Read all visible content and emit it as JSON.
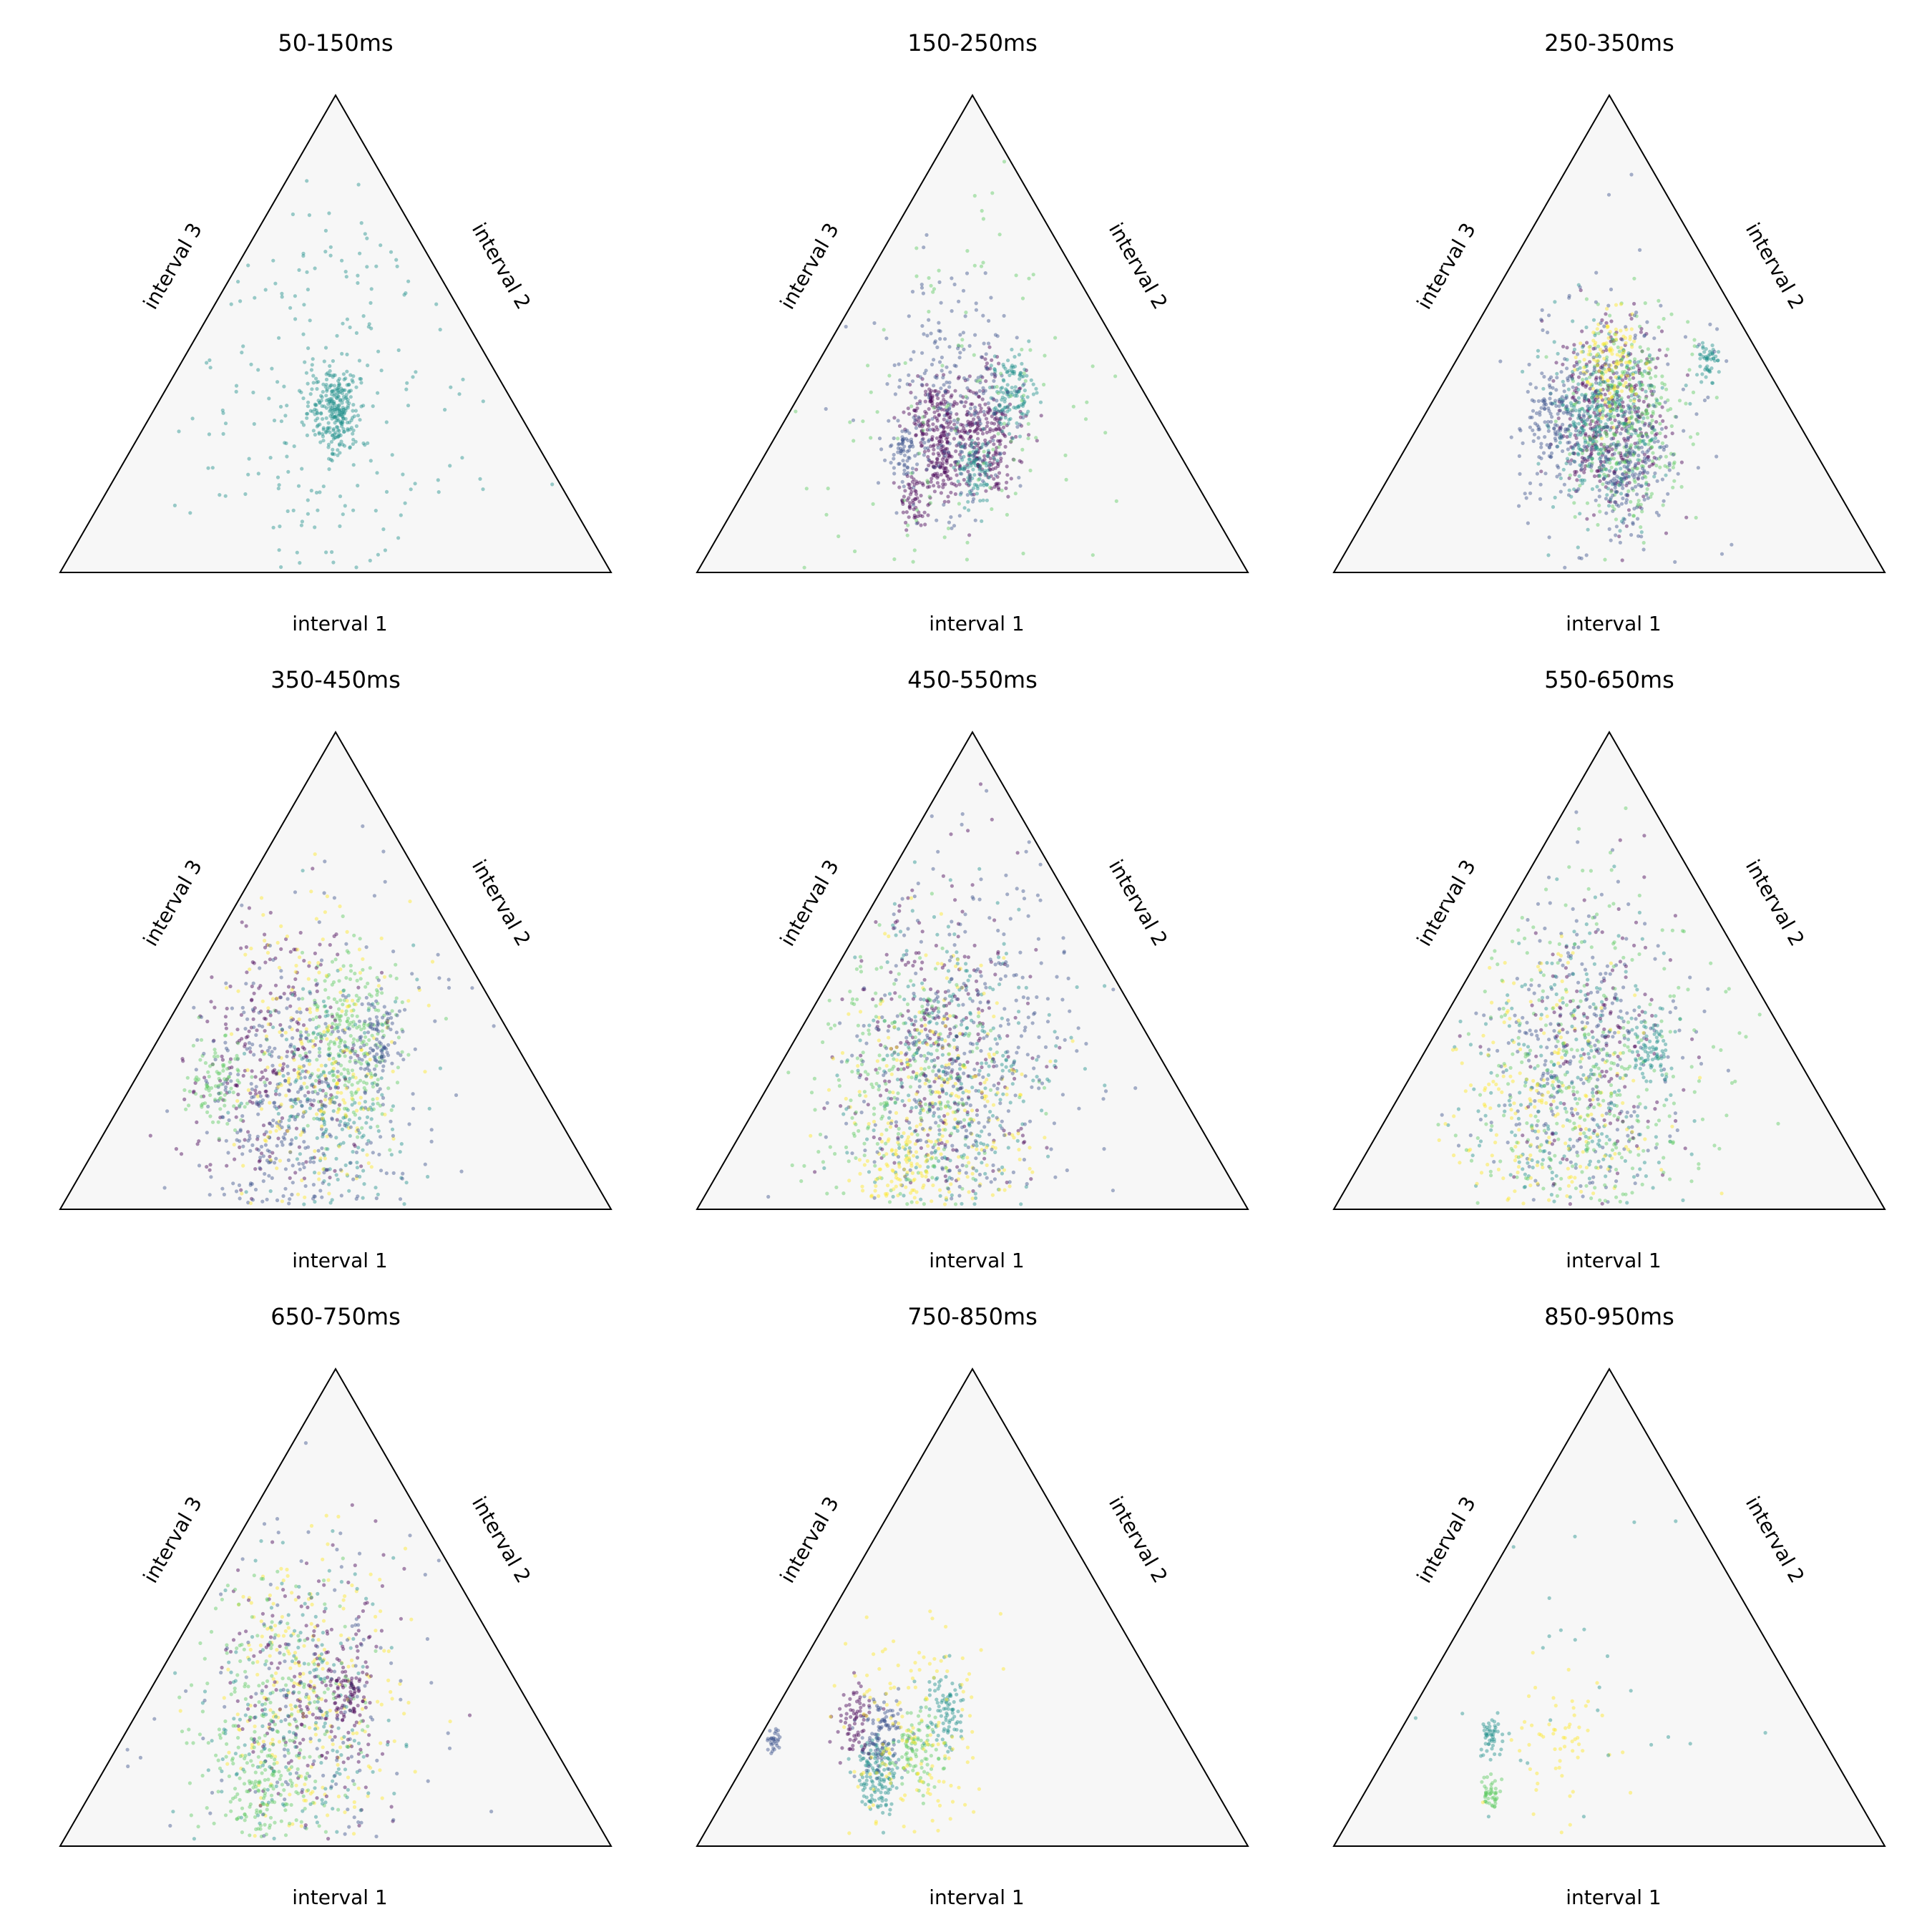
{
  "colors": {
    "triangle_fill": "#f7f7f7",
    "triangle_edge": "#000000",
    "colormap": [
      "#440154",
      "#3b528b",
      "#21918c",
      "#5ec962",
      "#fde725"
    ]
  },
  "chart_data": [
    {
      "type": "scatter",
      "subtype": "ternary",
      "title": "50-150ms",
      "axis_labels": {
        "bottom": "interval 1",
        "right": "interval 2",
        "left": "interval 3"
      },
      "clusters": [
        {
          "center": [
            0.33,
            0.33,
            0.34
          ],
          "spread": 0.03,
          "count": 260,
          "color_index": 2
        },
        {
          "center": [
            0.36,
            0.31,
            0.33
          ],
          "spread": 0.18,
          "count": 260,
          "color_index": 2
        }
      ]
    },
    {
      "type": "scatter",
      "subtype": "ternary",
      "title": "150-250ms",
      "axis_labels": {
        "bottom": "interval 1",
        "right": "interval 2",
        "left": "interval 3"
      },
      "clusters": [
        {
          "center": [
            0.33,
            0.38,
            0.29
          ],
          "spread": 0.045,
          "count": 260,
          "color_index": 0
        },
        {
          "center": [
            0.41,
            0.27,
            0.32
          ],
          "spread": 0.035,
          "count": 160,
          "color_index": 0
        },
        {
          "center": [
            0.24,
            0.38,
            0.38
          ],
          "spread": 0.03,
          "count": 120,
          "color_index": 2
        },
        {
          "center": [
            0.44,
            0.33,
            0.23
          ],
          "spread": 0.025,
          "count": 100,
          "color_index": 0
        },
        {
          "center": [
            0.39,
            0.4,
            0.21
          ],
          "spread": 0.025,
          "count": 90,
          "color_index": 2
        },
        {
          "center": [
            0.5,
            0.25,
            0.25
          ],
          "spread": 0.02,
          "count": 60,
          "color_index": 1
        },
        {
          "center": [
            0.53,
            0.32,
            0.15
          ],
          "spread": 0.02,
          "count": 60,
          "color_index": 0
        },
        {
          "center": [
            0.37,
            0.28,
            0.35
          ],
          "spread": 0.09,
          "count": 240,
          "color_index": 1
        },
        {
          "center": [
            0.34,
            0.33,
            0.33
          ],
          "spread": 0.2,
          "count": 160,
          "color_index": 3
        }
      ]
    },
    {
      "type": "scatter",
      "subtype": "ternary",
      "title": "250-350ms",
      "axis_labels": {
        "bottom": "interval 1",
        "right": "interval 2",
        "left": "interval 3"
      },
      "clusters": [
        {
          "center": [
            0.1,
            0.46,
            0.44
          ],
          "spread": 0.015,
          "count": 50,
          "color_index": 2
        },
        {
          "center": [
            0.34,
            0.34,
            0.32
          ],
          "spread": 0.07,
          "count": 360,
          "color_index": 0
        },
        {
          "center": [
            0.3,
            0.37,
            0.33
          ],
          "spread": 0.07,
          "count": 360,
          "color_index": 3
        },
        {
          "center": [
            0.36,
            0.32,
            0.32
          ],
          "spread": 0.07,
          "count": 300,
          "color_index": 2
        },
        {
          "center": [
            0.28,
            0.28,
            0.44
          ],
          "spread": 0.04,
          "count": 120,
          "color_index": 4
        },
        {
          "center": [
            0.36,
            0.44,
            0.2
          ],
          "spread": 0.04,
          "count": 120,
          "color_index": 1
        },
        {
          "center": [
            0.44,
            0.24,
            0.32
          ],
          "spread": 0.04,
          "count": 120,
          "color_index": 1
        },
        {
          "center": [
            0.34,
            0.33,
            0.33
          ],
          "spread": 0.13,
          "count": 200,
          "color_index": 1
        }
      ]
    },
    {
      "type": "scatter",
      "subtype": "ternary",
      "title": "350-450ms",
      "axis_labels": {
        "bottom": "interval 1",
        "right": "interval 2",
        "left": "interval 3"
      },
      "clusters": [
        {
          "center": [
            0.3,
            0.35,
            0.35
          ],
          "spread": 0.07,
          "count": 260,
          "color_index": 3
        },
        {
          "center": [
            0.45,
            0.22,
            0.33
          ],
          "spread": 0.12,
          "count": 260,
          "color_index": 0
        },
        {
          "center": [
            0.4,
            0.4,
            0.2
          ],
          "spread": 0.1,
          "count": 220,
          "color_index": 2
        },
        {
          "center": [
            0.5,
            0.3,
            0.2
          ],
          "spread": 0.1,
          "count": 220,
          "color_index": 1
        },
        {
          "center": [
            0.38,
            0.3,
            0.32
          ],
          "spread": 0.12,
          "count": 220,
          "color_index": 4
        },
        {
          "center": [
            0.25,
            0.4,
            0.35
          ],
          "spread": 0.03,
          "count": 90,
          "color_index": 1
        },
        {
          "center": [
            0.58,
            0.15,
            0.27
          ],
          "spread": 0.04,
          "count": 90,
          "color_index": 3
        },
        {
          "center": [
            0.4,
            0.38,
            0.22
          ],
          "spread": 0.18,
          "count": 200,
          "color_index": 1
        }
      ]
    },
    {
      "type": "scatter",
      "subtype": "ternary",
      "title": "450-550ms",
      "axis_labels": {
        "bottom": "interval 1",
        "right": "interval 2",
        "left": "interval 3"
      },
      "clusters": [
        {
          "center": [
            0.4,
            0.33,
            0.27
          ],
          "spread": 0.12,
          "count": 320,
          "color_index": 2
        },
        {
          "center": [
            0.38,
            0.28,
            0.34
          ],
          "spread": 0.12,
          "count": 260,
          "color_index": 0
        },
        {
          "center": [
            0.45,
            0.35,
            0.2
          ],
          "spread": 0.12,
          "count": 260,
          "color_index": 4
        },
        {
          "center": [
            0.5,
            0.25,
            0.25
          ],
          "spread": 0.12,
          "count": 260,
          "color_index": 3
        },
        {
          "center": [
            0.4,
            0.32,
            0.28
          ],
          "spread": 0.12,
          "count": 220,
          "color_index": 1
        },
        {
          "center": [
            0.6,
            0.34,
            0.06
          ],
          "spread": 0.04,
          "count": 90,
          "color_index": 4
        },
        {
          "center": [
            0.3,
            0.35,
            0.35
          ],
          "spread": 0.2,
          "count": 180,
          "color_index": 1
        }
      ]
    },
    {
      "type": "scatter",
      "subtype": "ternary",
      "title": "550-650ms",
      "axis_labels": {
        "bottom": "interval 1",
        "right": "interval 2",
        "left": "interval 3"
      },
      "clusters": [
        {
          "center": [
            0.4,
            0.3,
            0.3
          ],
          "spread": 0.13,
          "count": 300,
          "color_index": 1
        },
        {
          "center": [
            0.45,
            0.3,
            0.25
          ],
          "spread": 0.13,
          "count": 260,
          "color_index": 2
        },
        {
          "center": [
            0.5,
            0.28,
            0.22
          ],
          "spread": 0.13,
          "count": 240,
          "color_index": 4
        },
        {
          "center": [
            0.42,
            0.34,
            0.24
          ],
          "spread": 0.13,
          "count": 200,
          "color_index": 3
        },
        {
          "center": [
            0.35,
            0.3,
            0.35
          ],
          "spread": 0.12,
          "count": 140,
          "color_index": 0
        },
        {
          "center": [
            0.25,
            0.4,
            0.35
          ],
          "spread": 0.03,
          "count": 80,
          "color_index": 2
        },
        {
          "center": [
            0.4,
            0.36,
            0.24
          ],
          "spread": 0.2,
          "count": 180,
          "color_index": 3
        }
      ]
    },
    {
      "type": "scatter",
      "subtype": "ternary",
      "title": "650-750ms",
      "axis_labels": {
        "bottom": "interval 1",
        "right": "interval 2",
        "left": "interval 3"
      },
      "clusters": [
        {
          "center": [
            0.4,
            0.3,
            0.3
          ],
          "spread": 0.12,
          "count": 240,
          "color_index": 4
        },
        {
          "center": [
            0.38,
            0.3,
            0.32
          ],
          "spread": 0.1,
          "count": 200,
          "color_index": 0
        },
        {
          "center": [
            0.48,
            0.25,
            0.27
          ],
          "spread": 0.12,
          "count": 220,
          "color_index": 3
        },
        {
          "center": [
            0.43,
            0.3,
            0.27
          ],
          "spread": 0.12,
          "count": 200,
          "color_index": 2
        },
        {
          "center": [
            0.58,
            0.3,
            0.12
          ],
          "spread": 0.04,
          "count": 100,
          "color_index": 3
        },
        {
          "center": [
            0.32,
            0.36,
            0.32
          ],
          "spread": 0.03,
          "count": 80,
          "color_index": 0
        },
        {
          "center": [
            0.4,
            0.34,
            0.26
          ],
          "spread": 0.2,
          "count": 160,
          "color_index": 1
        }
      ]
    },
    {
      "type": "scatter",
      "subtype": "ternary",
      "title": "750-850ms",
      "axis_labels": {
        "bottom": "interval 1",
        "right": "interval 2",
        "left": "interval 3"
      },
      "clusters": [
        {
          "center": [
            0.6,
            0.25,
            0.15
          ],
          "spread": 0.03,
          "count": 140,
          "color_index": 2
        },
        {
          "center": [
            0.55,
            0.22,
            0.23
          ],
          "spread": 0.03,
          "count": 110,
          "color_index": 1
        },
        {
          "center": [
            0.5,
            0.3,
            0.2
          ],
          "spread": 0.03,
          "count": 100,
          "color_index": 3
        },
        {
          "center": [
            0.4,
            0.31,
            0.29
          ],
          "spread": 0.03,
          "count": 90,
          "color_index": 2
        },
        {
          "center": [
            0.58,
            0.15,
            0.27
          ],
          "spread": 0.025,
          "count": 70,
          "color_index": 0
        },
        {
          "center": [
            0.75,
            0.03,
            0.22
          ],
          "spread": 0.01,
          "count": 30,
          "color_index": 1
        },
        {
          "center": [
            0.5,
            0.28,
            0.22
          ],
          "spread": 0.09,
          "count": 160,
          "color_index": 4
        }
      ]
    },
    {
      "type": "scatter",
      "subtype": "ternary",
      "title": "850-950ms",
      "axis_labels": {
        "bottom": "interval 1",
        "right": "interval 2",
        "left": "interval 3"
      },
      "clusters": [
        {
          "center": [
            0.6,
            0.17,
            0.23
          ],
          "spread": 0.015,
          "count": 50,
          "color_index": 2
        },
        {
          "center": [
            0.66,
            0.23,
            0.11
          ],
          "spread": 0.012,
          "count": 45,
          "color_index": 3
        },
        {
          "center": [
            0.48,
            0.31,
            0.21
          ],
          "spread": 0.06,
          "count": 60,
          "color_index": 4
        },
        {
          "center": [
            0.45,
            0.3,
            0.25
          ],
          "spread": 0.2,
          "count": 40,
          "color_index": 2
        }
      ]
    }
  ]
}
